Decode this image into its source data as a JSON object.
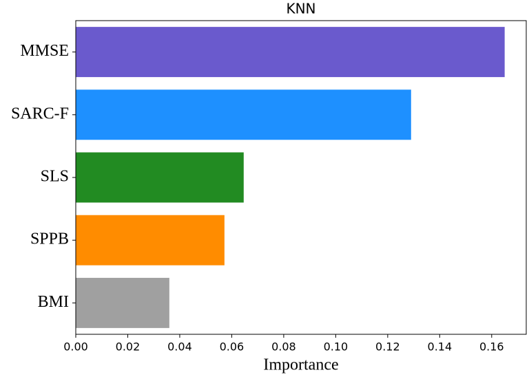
{
  "chart_data": {
    "type": "barh",
    "title": "KNN",
    "xlabel": "Importance",
    "categories": [
      "MMSE",
      "SARC-F",
      "SLS",
      "SPPB",
      "BMI"
    ],
    "values": [
      0.165,
      0.129,
      0.0646,
      0.0572,
      0.036
    ],
    "colors": [
      "#6a5acd",
      "#1e90ff",
      "#228b22",
      "#ff8c00",
      "#a0a0a0"
    ],
    "xlim": [
      0,
      0.1733
    ],
    "xticks": [
      {
        "value": 0,
        "label": "0.00"
      },
      {
        "value": 0.02,
        "label": "0.02"
      },
      {
        "value": 0.04,
        "label": "0.04"
      },
      {
        "value": 0.06,
        "label": "0.06"
      },
      {
        "value": 0.08,
        "label": "0.08"
      },
      {
        "value": 0.1,
        "label": "0.10"
      },
      {
        "value": 0.12,
        "label": "0.12"
      },
      {
        "value": 0.14,
        "label": "0.14"
      },
      {
        "value": 0.16,
        "label": "0.16"
      }
    ]
  }
}
